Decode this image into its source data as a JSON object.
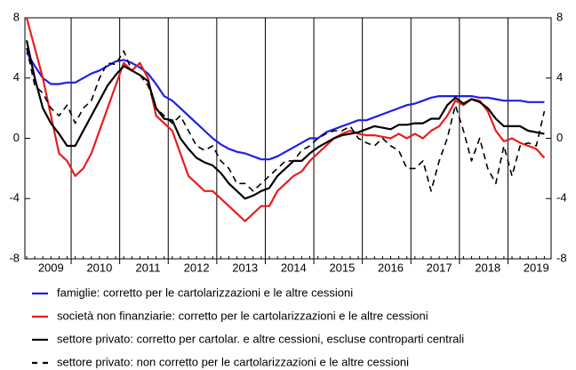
{
  "chart_data": {
    "type": "line",
    "categories": [
      null,
      null,
      null,
      "2009",
      null,
      null,
      null,
      null,
      null,
      "2010",
      null,
      null,
      null,
      null,
      null,
      "2011",
      null,
      null,
      null,
      null,
      null,
      "2012",
      null,
      null,
      null,
      null,
      null,
      "2013",
      null,
      null,
      null,
      null,
      null,
      "2014",
      null,
      null,
      null,
      null,
      null,
      "2015",
      null,
      null,
      null,
      null,
      null,
      "2016",
      null,
      null,
      null,
      null,
      null,
      "2017",
      null,
      null,
      null,
      null,
      null,
      "2018",
      null,
      null,
      null,
      null,
      null,
      "2019",
      null
    ],
    "series": [
      {
        "name": "famiglie: corretto per le cartolarizzazioni e le altre cessioni",
        "color": "#1f1fe6",
        "style": "solid",
        "values": [
          5.7,
          4.8,
          4.0,
          3.6,
          3.6,
          3.7,
          3.7,
          4.0,
          4.3,
          4.5,
          4.8,
          5.1,
          5.2,
          5.0,
          4.7,
          4.3,
          3.6,
          2.8,
          2.5,
          2.0,
          1.5,
          1.0,
          0.5,
          0.0,
          -0.4,
          -0.7,
          -0.9,
          -1.0,
          -1.2,
          -1.4,
          -1.4,
          -1.2,
          -0.9,
          -0.6,
          -0.3,
          0.0,
          0.0,
          0.4,
          0.6,
          0.8,
          1.0,
          1.2,
          1.2,
          1.4,
          1.6,
          1.8,
          2.0,
          2.2,
          2.3,
          2.5,
          2.7,
          2.8,
          2.8,
          2.8,
          2.8,
          2.8,
          2.7,
          2.7,
          2.6,
          2.5,
          2.5,
          2.5,
          2.4,
          2.4,
          2.4
        ]
      },
      {
        "name": "società non finanziarie: corretto per le cartolarizzazioni e le altre cessioni",
        "color": "#e61e1e",
        "style": "solid",
        "values": [
          8.0,
          6.0,
          4.0,
          1.5,
          -1.0,
          -1.5,
          -2.5,
          -2.0,
          -1.0,
          0.5,
          2.0,
          3.5,
          5.0,
          4.5,
          5.0,
          4.0,
          1.5,
          1.0,
          0.5,
          -1.0,
          -2.5,
          -3.0,
          -3.5,
          -3.5,
          -4.0,
          -4.5,
          -5.0,
          -5.5,
          -5.0,
          -4.5,
          -4.5,
          -3.5,
          -3.0,
          -2.5,
          -2.2,
          -1.5,
          -1.0,
          -0.5,
          0.0,
          0.3,
          0.5,
          0.3,
          0.2,
          0.2,
          0.1,
          0.0,
          0.3,
          0.0,
          0.3,
          0.0,
          0.5,
          0.8,
          1.5,
          2.5,
          2.2,
          2.6,
          2.5,
          1.8,
          0.5,
          -0.2,
          0.0,
          -0.3,
          -0.5,
          -0.7,
          -1.3
        ]
      },
      {
        "name": "settore privato: corretto per cartolar. e altre cessioni, escluse controparti centrali",
        "color": "#000000",
        "style": "solid",
        "values": [
          6.5,
          4.0,
          2.0,
          1.0,
          0.3,
          -0.5,
          -0.5,
          0.5,
          1.5,
          2.5,
          3.5,
          4.2,
          4.8,
          4.5,
          4.2,
          3.8,
          2.0,
          1.3,
          1.2,
          0.0,
          -0.7,
          -1.3,
          -1.6,
          -1.8,
          -2.3,
          -3.0,
          -3.5,
          -4.0,
          -3.8,
          -3.5,
          -3.3,
          -2.5,
          -2.0,
          -1.5,
          -1.5,
          -1.0,
          -0.6,
          -0.3,
          0.0,
          0.2,
          0.3,
          0.4,
          0.6,
          0.8,
          0.7,
          0.6,
          0.9,
          0.9,
          1.0,
          1.0,
          1.3,
          1.3,
          2.2,
          2.7,
          2.3,
          2.6,
          2.4,
          2.0,
          1.3,
          0.8,
          0.8,
          0.8,
          0.5,
          0.4,
          0.3
        ]
      },
      {
        "name": "settore privato: non corretto per le cartolarizzazioni e le altre cessioni",
        "color": "#000000",
        "style": "dashed",
        "values": [
          6.0,
          3.5,
          3.0,
          2.0,
          1.5,
          2.2,
          1.0,
          2.0,
          2.5,
          4.0,
          5.0,
          4.9,
          5.8,
          4.5,
          4.2,
          3.5,
          2.0,
          1.5,
          1.0,
          1.5,
          0.5,
          -0.5,
          -0.8,
          -0.5,
          -1.5,
          -2.0,
          -3.0,
          -3.0,
          -3.5,
          -3.0,
          -2.5,
          -2.0,
          -1.5,
          -1.5,
          -0.8,
          -0.5,
          0.0,
          0.3,
          0.5,
          0.5,
          0.8,
          0.0,
          -0.3,
          -0.5,
          0.0,
          -0.5,
          -0.8,
          -2.0,
          -2.0,
          -1.5,
          -3.5,
          -1.5,
          0.0,
          2.2,
          0.5,
          -1.5,
          0.0,
          -2.0,
          -3.0,
          -0.5,
          -2.5,
          -0.5,
          -0.3,
          -0.5,
          1.8
        ]
      }
    ],
    "ylim": [
      -8,
      8
    ],
    "yticks": [
      -8,
      -4,
      0,
      4,
      8
    ],
    "y2lim": [
      -8,
      8
    ],
    "y2ticks": [
      -8,
      -4,
      0,
      4,
      8
    ]
  }
}
